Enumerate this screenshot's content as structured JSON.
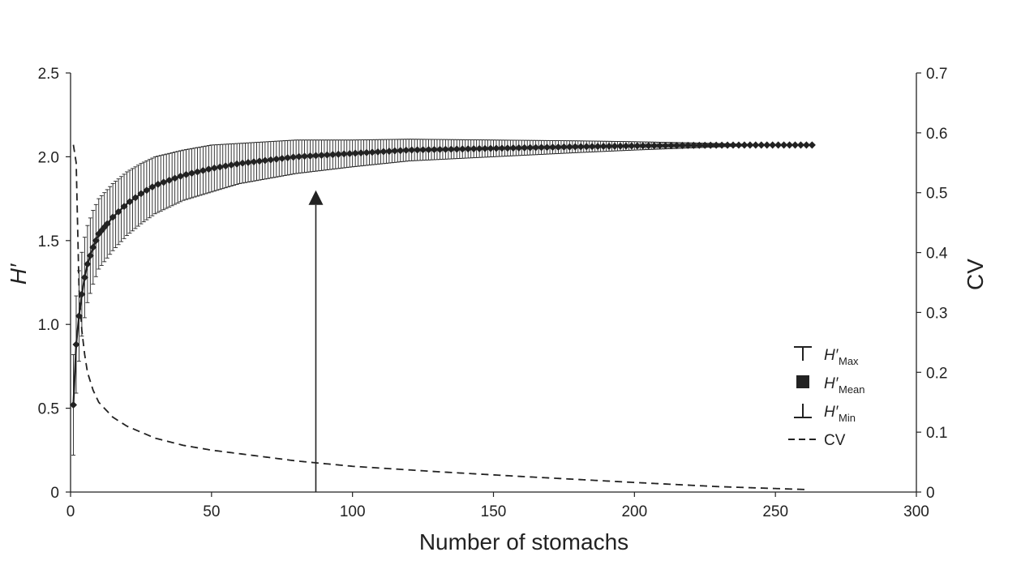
{
  "chart_data": {
    "type": "line",
    "title": "",
    "xlabel": "Number of stomachs",
    "ylabel_left": "H′",
    "ylabel_right": "CV",
    "xlim": [
      0,
      300
    ],
    "ylim_left": [
      0,
      2.5
    ],
    "ylim_right": [
      0,
      0.7
    ],
    "x_ticks": [
      0,
      50,
      100,
      150,
      200,
      250,
      300
    ],
    "x_tick_labels": [
      "0",
      "50",
      "100",
      "150",
      "200",
      "250",
      "300"
    ],
    "y_left_ticks": [
      0,
      0.5,
      1.0,
      1.5,
      2.0,
      2.5
    ],
    "y_left_tick_labels": [
      "0",
      "0.5",
      "1.0",
      "1.5",
      "2.0",
      "2.5"
    ],
    "y_right_ticks": [
      0,
      0.1,
      0.2,
      0.3,
      0.4,
      0.5,
      0.6,
      0.7
    ],
    "y_right_tick_labels": [
      "0",
      "0.1",
      "0.2",
      "0.3",
      "0.4",
      "0.5",
      "0.6",
      "0.7"
    ],
    "n_max": 263,
    "mean_curve": {
      "x": [
        1,
        2,
        3,
        4,
        5,
        6,
        8,
        10,
        15,
        20,
        25,
        30,
        40,
        50,
        60,
        70,
        80,
        90,
        100,
        120,
        150,
        180,
        200,
        220,
        240,
        263
      ],
      "y": [
        0.52,
        0.88,
        1.05,
        1.18,
        1.28,
        1.36,
        1.46,
        1.54,
        1.64,
        1.72,
        1.78,
        1.83,
        1.89,
        1.93,
        1.96,
        1.98,
        2.0,
        2.01,
        2.02,
        2.04,
        2.05,
        2.06,
        2.065,
        2.068,
        2.07,
        2.07
      ]
    },
    "error_halfwidth": {
      "x": [
        1,
        2,
        3,
        4,
        5,
        6,
        8,
        10,
        15,
        20,
        25,
        30,
        40,
        50,
        60,
        70,
        80,
        90,
        100,
        120,
        150,
        180,
        200,
        220,
        240,
        263
      ],
      "y": [
        0.3,
        0.29,
        0.27,
        0.25,
        0.24,
        0.23,
        0.22,
        0.21,
        0.2,
        0.19,
        0.18,
        0.17,
        0.15,
        0.14,
        0.12,
        0.11,
        0.1,
        0.09,
        0.08,
        0.065,
        0.05,
        0.035,
        0.025,
        0.015,
        0.005,
        0.0
      ]
    },
    "cv_curve": {
      "x": [
        1,
        2,
        3,
        4,
        5,
        6,
        8,
        10,
        15,
        20,
        30,
        40,
        50,
        60,
        80,
        100,
        130,
        160,
        200,
        230,
        262
      ],
      "y": [
        0.58,
        0.55,
        0.34,
        0.27,
        0.23,
        0.2,
        0.17,
        0.15,
        0.125,
        0.11,
        0.09,
        0.078,
        0.07,
        0.064,
        0.052,
        0.043,
        0.034,
        0.026,
        0.016,
        0.009,
        0.004
      ]
    },
    "arrow": {
      "x": 87,
      "y_from": 0,
      "y_to": 1.8
    },
    "legend": [
      {
        "id": "max",
        "main": "H′",
        "sub": "Max"
      },
      {
        "id": "mean",
        "main": "H′",
        "sub": "Mean"
      },
      {
        "id": "min",
        "main": "H′",
        "sub": "Min"
      },
      {
        "id": "cv",
        "main": "CV",
        "sub": ""
      }
    ],
    "legend_position": "bottom-right",
    "grid": false
  }
}
